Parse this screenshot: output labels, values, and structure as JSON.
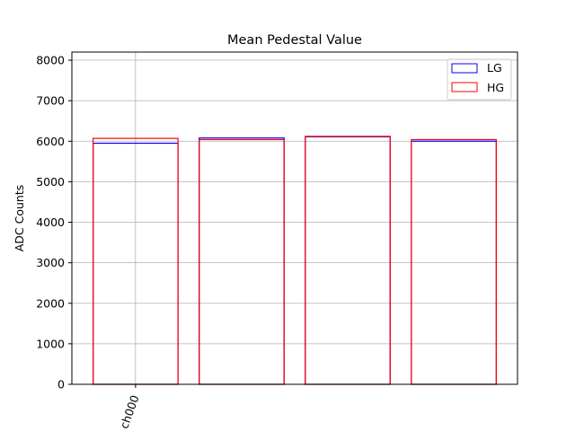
{
  "chart_data": {
    "type": "bar",
    "title": "Mean Pedestal Value",
    "xlabel": "",
    "ylabel": "ADC Counts",
    "x": [
      0,
      1,
      2,
      3
    ],
    "x_tick_labels": [
      {
        "x": 0,
        "label": "ch000"
      }
    ],
    "xlim": [
      -0.6,
      3.6
    ],
    "ylim": [
      0,
      8200
    ],
    "y_ticks": [
      0,
      1000,
      2000,
      3000,
      4000,
      5000,
      6000,
      7000,
      8000
    ],
    "grid": true,
    "legend_position": "top-right",
    "bar_style": "outline",
    "series": [
      {
        "name": "LG",
        "color": "#0000ff",
        "values": [
          5950,
          6080,
          6110,
          6000
        ]
      },
      {
        "name": "HG",
        "color": "#ff0000",
        "values": [
          6070,
          6040,
          6120,
          6040
        ]
      }
    ]
  }
}
